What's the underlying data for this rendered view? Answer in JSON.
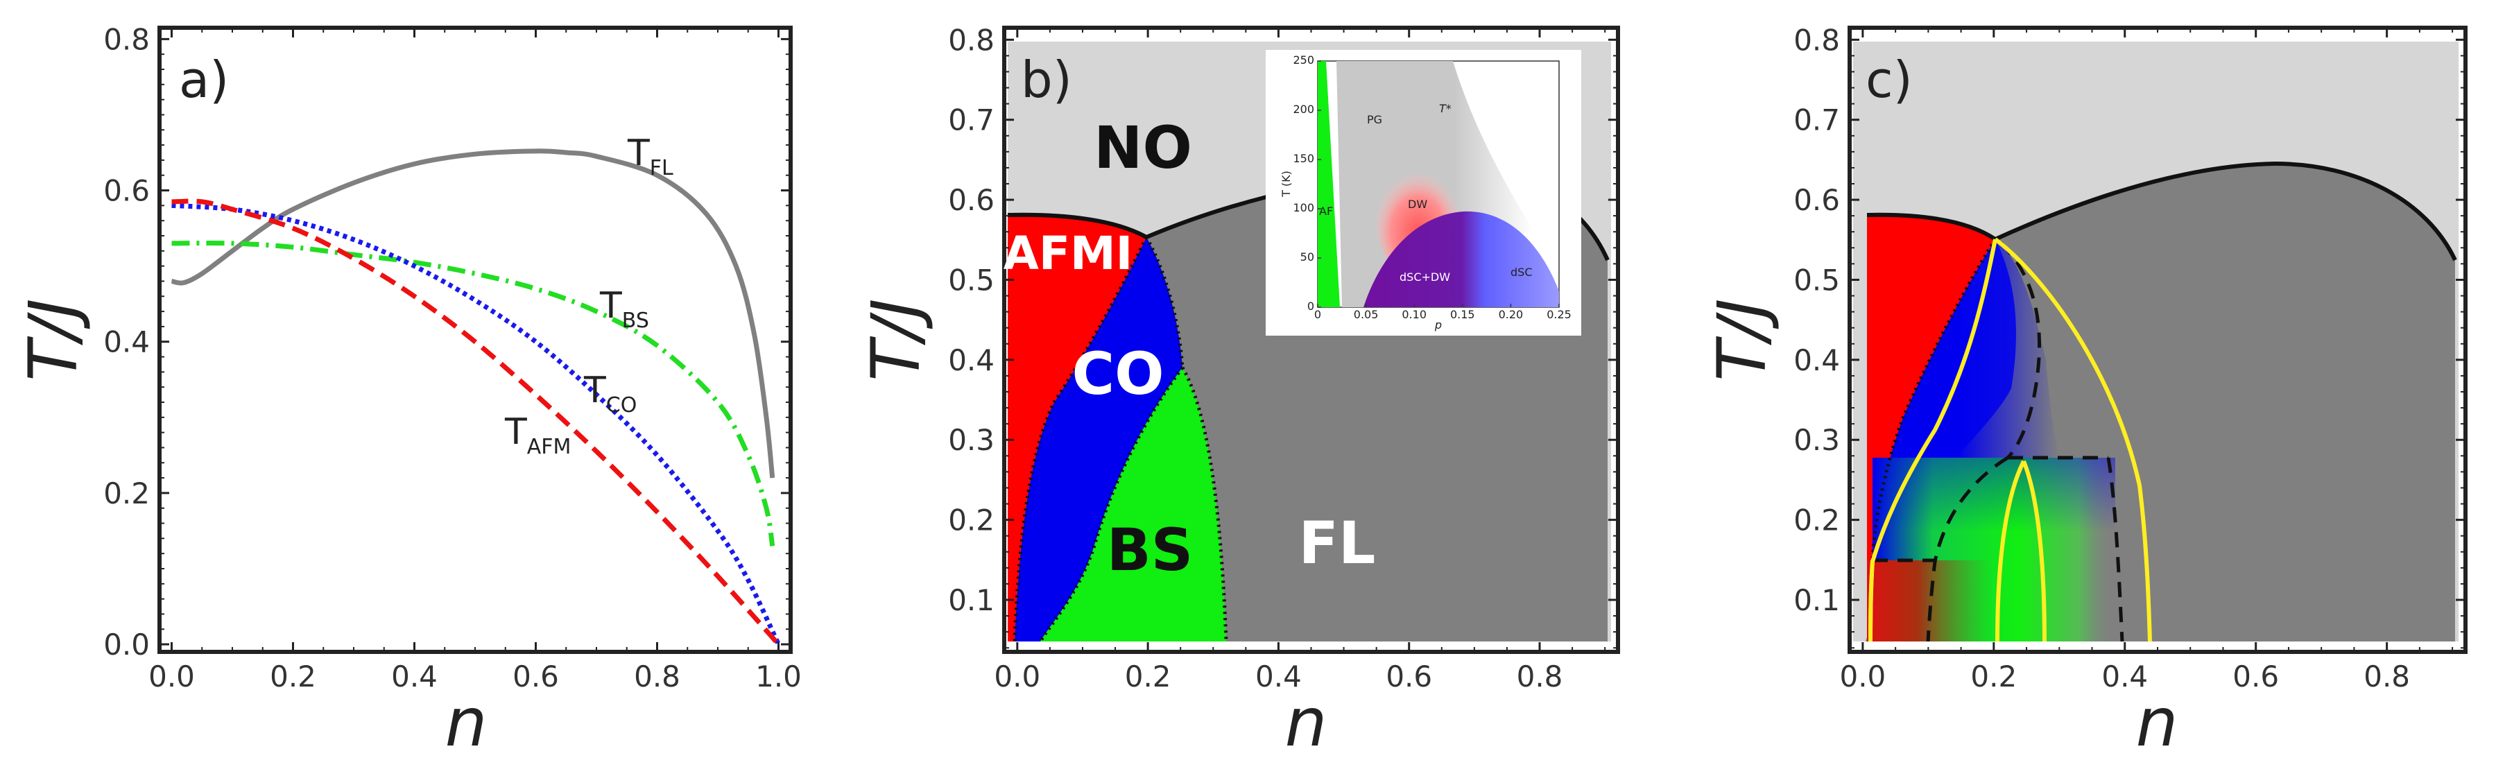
{
  "chart_data": [
    {
      "panel": "a)",
      "type": "line",
      "xlabel": "n",
      "ylabel": "T/J",
      "xlim": [
        -0.02,
        1.02
      ],
      "ylim": [
        -0.01,
        0.815
      ],
      "xticks": [
        "0.0",
        "0.2",
        "0.4",
        "0.6",
        "0.8",
        "1.0"
      ],
      "yticks": [
        "0.0",
        "0.2",
        "0.4",
        "0.6",
        "0.8"
      ],
      "series": [
        {
          "name": "T_FL",
          "label_main": "T",
          "label_sub": "FL",
          "color": "#808080",
          "style": "solid",
          "x": [
            0.0,
            0.02,
            0.05,
            0.1,
            0.15,
            0.2,
            0.3,
            0.4,
            0.5,
            0.6,
            0.65,
            0.7,
            0.8,
            0.88,
            0.93,
            0.96,
            0.98,
            0.99
          ],
          "y": [
            0.48,
            0.478,
            0.49,
            0.52,
            0.55,
            0.575,
            0.61,
            0.635,
            0.648,
            0.652,
            0.65,
            0.645,
            0.62,
            0.57,
            0.5,
            0.41,
            0.3,
            0.22
          ]
        },
        {
          "name": "T_BS",
          "label_main": "T",
          "label_sub": "BS",
          "color": "#22dd22",
          "style": "dashdot",
          "x": [
            0.0,
            0.1,
            0.2,
            0.3,
            0.4,
            0.5,
            0.6,
            0.7,
            0.8,
            0.9,
            0.95,
            0.98,
            0.99
          ],
          "y": [
            0.53,
            0.53,
            0.525,
            0.515,
            0.505,
            0.49,
            0.47,
            0.44,
            0.395,
            0.32,
            0.25,
            0.18,
            0.13
          ]
        },
        {
          "name": "T_CO",
          "label_main": "T",
          "label_sub": "CO",
          "color": "#1a1aee",
          "style": "dotted",
          "x": [
            0.0,
            0.1,
            0.2,
            0.3,
            0.4,
            0.5,
            0.6,
            0.7,
            0.8,
            0.9,
            0.95,
            1.0
          ],
          "y": [
            0.58,
            0.575,
            0.56,
            0.535,
            0.5,
            0.455,
            0.4,
            0.33,
            0.25,
            0.15,
            0.085,
            0.0
          ]
        },
        {
          "name": "T_AFM",
          "label_main": "T",
          "label_sub": "AFM",
          "color": "#ee1111",
          "style": "dashed",
          "x": [
            0.0,
            0.05,
            0.1,
            0.2,
            0.3,
            0.4,
            0.5,
            0.6,
            0.7,
            0.8,
            0.9,
            1.0
          ],
          "y": [
            0.585,
            0.585,
            0.575,
            0.55,
            0.51,
            0.46,
            0.4,
            0.33,
            0.255,
            0.175,
            0.09,
            0.0
          ]
        }
      ]
    },
    {
      "panel": "b)",
      "type": "phase-diagram",
      "xlabel": "n",
      "ylabel": "T/J",
      "xlim": [
        -0.02,
        0.92
      ],
      "ylim": [
        0.035,
        0.815
      ],
      "xticks": [
        "0.0",
        "0.2",
        "0.4",
        "0.6",
        "0.8"
      ],
      "yticks": [
        "0.1",
        "0.2",
        "0.3",
        "0.4",
        "0.5",
        "0.6",
        "0.7",
        "0.8"
      ],
      "regions": [
        {
          "name": "NO",
          "color": "#d6d6d6"
        },
        {
          "name": "AFMI",
          "color": "#ff0000"
        },
        {
          "name": "CO",
          "color": "#0000ee"
        },
        {
          "name": "BS",
          "color": "#11ee11"
        },
        {
          "name": "FL",
          "color": "#808080"
        }
      ],
      "inset": {
        "ylabel": "T (K)",
        "xlabel": "p",
        "xticks": [
          "0",
          "0.05",
          "0.10",
          "0.15",
          "0.20",
          "0.25"
        ],
        "yticks": [
          "0",
          "50",
          "100",
          "150",
          "200",
          "250"
        ],
        "labels": [
          "AF",
          "PG",
          "T*",
          "DW",
          "dSC+DW",
          "dSC"
        ]
      }
    },
    {
      "panel": "c)",
      "type": "phase-diagram",
      "xlabel": "n",
      "ylabel": "T/J",
      "xlim": [
        -0.02,
        0.92
      ],
      "ylim": [
        0.035,
        0.815
      ],
      "xticks": [
        "0.0",
        "0.2",
        "0.4",
        "0.6",
        "0.8"
      ],
      "yticks": [
        "0.1",
        "0.2",
        "0.3",
        "0.4",
        "0.5",
        "0.6",
        "0.7",
        "0.8"
      ]
    }
  ]
}
